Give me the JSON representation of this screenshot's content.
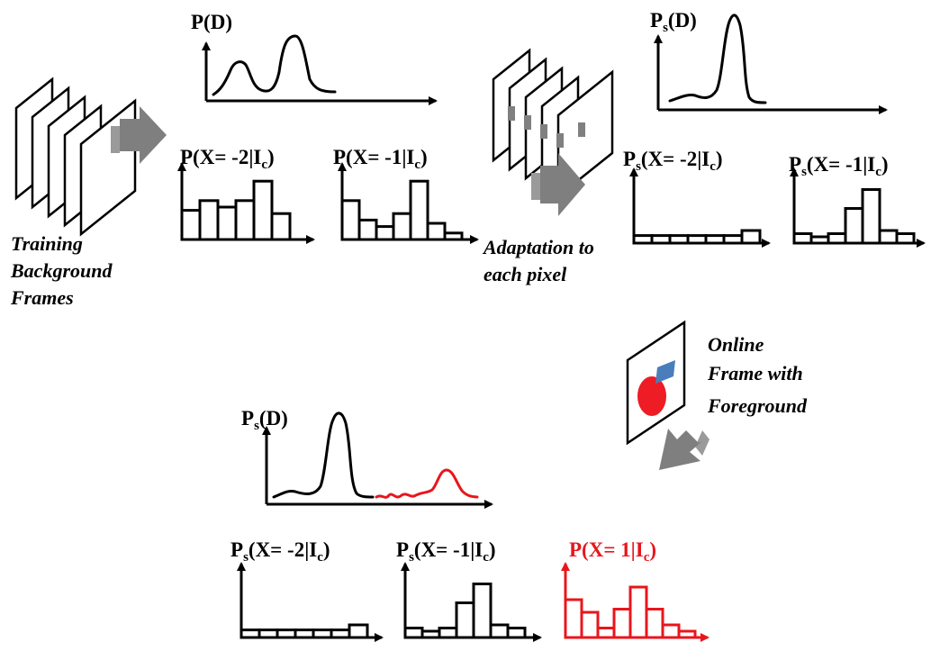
{
  "colors": {
    "ink": "#000000",
    "foreground_dist": "#e8161c",
    "arrow_gray": "#7f7f7f",
    "patch_blue": "#4a7ebb",
    "blob_red": "#ee1c24",
    "frame_mark": "#808080"
  },
  "captions": {
    "training": [
      "Training",
      "Background",
      "Frames"
    ],
    "adaptation": [
      "Adaptation to",
      "each pixel"
    ],
    "online": [
      "Online",
      "Frame with",
      "Foreground"
    ]
  },
  "labels": {
    "pd_top": {
      "main": "P(D)"
    },
    "psd_top": {
      "main": "P",
      "sub": "s",
      "rest": "(D)"
    },
    "psd_bottom": {
      "main": "P",
      "sub": "s",
      "rest": "(D)"
    },
    "h_top_1": {
      "main": "P(X= -2|I",
      "sub": "c",
      "rest": ")"
    },
    "h_top_2": {
      "main": "P(X= -1|I",
      "sub": "c",
      "rest": ")"
    },
    "h_top_3": {
      "main": "P",
      "sub": "s",
      "mid": "(X= -2|I",
      "sub2": "c",
      "rest": ")"
    },
    "h_top_4": {
      "main": "P",
      "sub": "s",
      "mid": "(X= -1|I",
      "sub2": "c",
      "rest": ")"
    },
    "h_bot_1": {
      "main": "P",
      "sub": "s",
      "mid": "(X= -2|I",
      "sub2": "c",
      "rest": ")"
    },
    "h_bot_2": {
      "main": "P",
      "sub": "s",
      "mid": "(X= -1|I",
      "sub2": "c",
      "rest": ")"
    },
    "h_bot_3": {
      "main": "P(X= 1|I",
      "sub": "c",
      "rest": ")"
    }
  },
  "histograms": {
    "h_top_1": [
      0.45,
      0.6,
      0.5,
      0.6,
      0.9,
      0.4
    ],
    "h_top_2": [
      0.6,
      0.3,
      0.2,
      0.4,
      0.9,
      0.25,
      0.1
    ],
    "h_top_3": [
      0.12,
      0.12,
      0.12,
      0.12,
      0.12,
      0.12,
      0.2
    ],
    "h_top_4": [
      0.15,
      0.1,
      0.15,
      0.55,
      0.85,
      0.2,
      0.15
    ],
    "h_bot_1": [
      0.12,
      0.12,
      0.12,
      0.12,
      0.12,
      0.12,
      0.2
    ],
    "h_bot_2": [
      0.15,
      0.1,
      0.15,
      0.55,
      0.85,
      0.2,
      0.15
    ],
    "h_bot_3": [
      0.6,
      0.4,
      0.15,
      0.45,
      0.8,
      0.45,
      0.2,
      0.1
    ]
  }
}
